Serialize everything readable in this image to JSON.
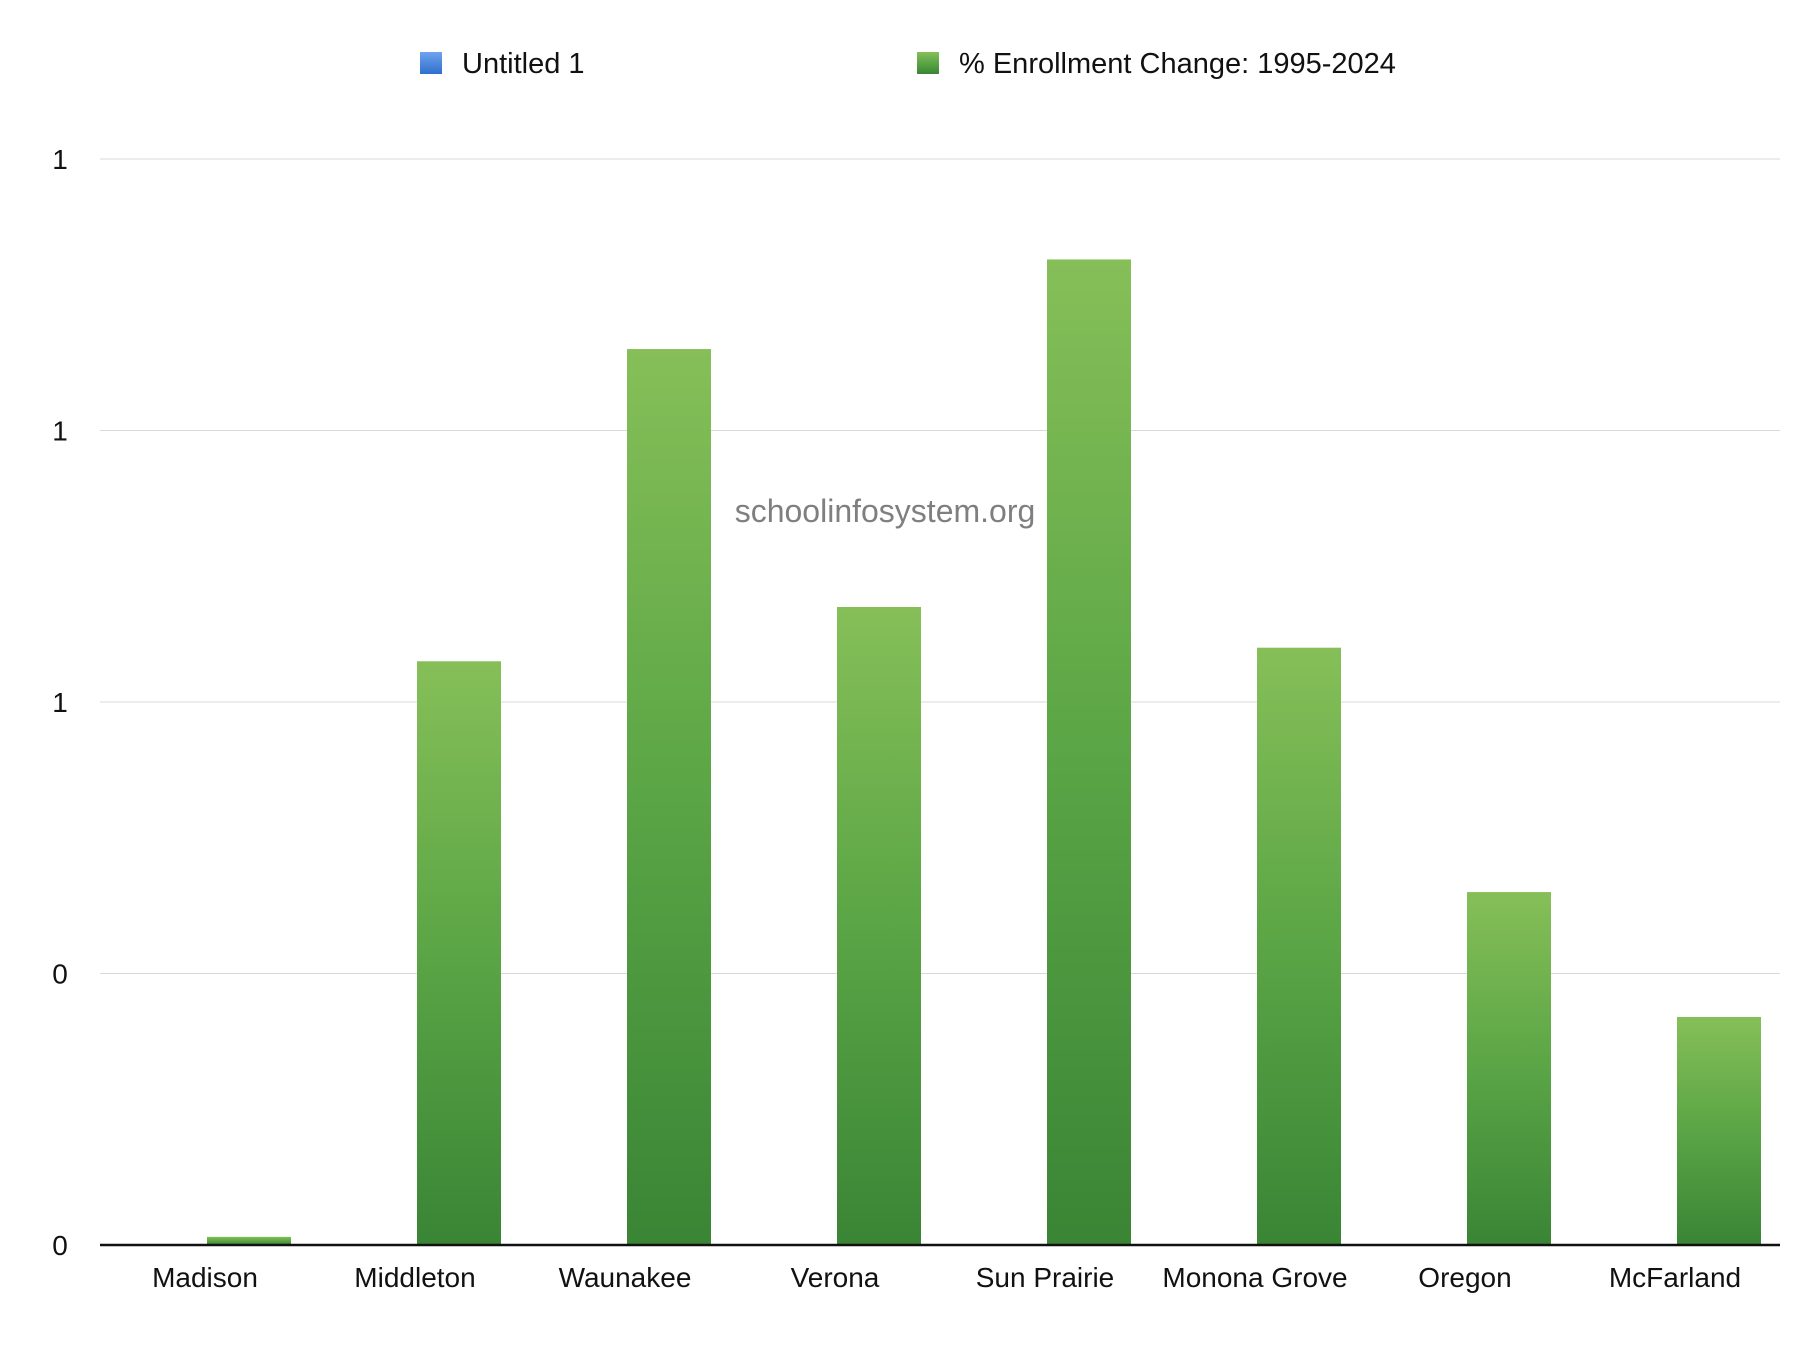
{
  "chart_data": {
    "type": "bar",
    "title": "",
    "xlabel": "",
    "ylabel": "",
    "categories": [
      "Madison",
      "Middleton",
      "Waunakee",
      "Verona",
      "Sun Prairie",
      "Monona Grove",
      "Oregon",
      "McFarland"
    ],
    "series": [
      {
        "name": "Untitled 1",
        "values": [
          0,
          0,
          0,
          0,
          0,
          0,
          0,
          0
        ],
        "color": "#3f7fd6"
      },
      {
        "name": "% Enrollment Change: 1995-2024",
        "values": [
          0.006,
          0.43,
          0.66,
          0.47,
          0.726,
          0.44,
          0.26,
          0.168
        ],
        "color": "#4f9e42"
      }
    ],
    "ylim": [
      0,
      0.8
    ],
    "ytick_labels": [
      "0",
      "0",
      "1",
      "1",
      "1"
    ],
    "grid": true,
    "legend_position": "top",
    "watermark": "schoolinfosystem.org"
  }
}
